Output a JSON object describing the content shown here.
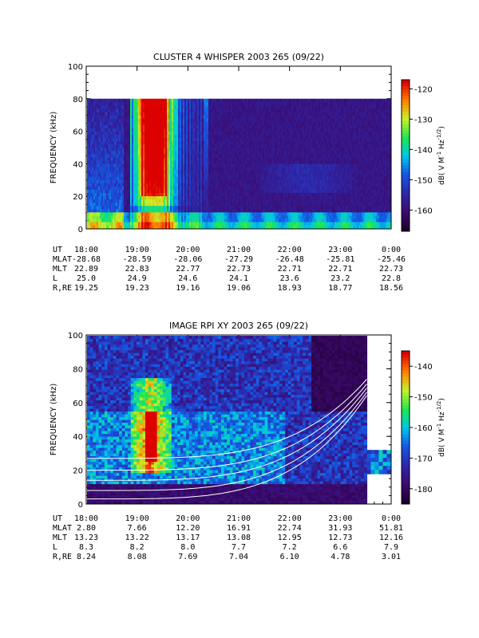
{
  "panels": [
    {
      "title": "CLUSTER 4 WHISPER 2003 265 (09/22)",
      "ylabel": "FREQUENCY (kHz)",
      "ylim": [
        0,
        100
      ],
      "yticks": [
        "0",
        "20",
        "40",
        "60",
        "80",
        "100"
      ],
      "colorbar_label": "dB( V M⁻¹ Hz⁻¹ᐟ²)",
      "colorbar_label_parts": [
        "dB( V M",
        "-1",
        " Hz",
        "-1/2",
        ")"
      ],
      "colorbar_ticks": [
        "-120",
        "-130",
        "-140",
        "-150",
        "-160"
      ],
      "colorbar_range": [
        -167,
        -117
      ],
      "ephemeris": {
        "rows": [
          {
            "label": "UT",
            "values": [
              "18:00",
              "19:00",
              "20:00",
              "21:00",
              "22:00",
              "23:00",
              "0:00"
            ]
          },
          {
            "label": "MLAT",
            "values": [
              "-28.68",
              "-28.59",
              "-28.06",
              "-27.29",
              "-26.48",
              "-25.81",
              "-25.46"
            ]
          },
          {
            "label": "MLT",
            "values": [
              "22.89",
              "22.83",
              "22.77",
              "22.73",
              "22.71",
              "22.71",
              "22.73"
            ]
          },
          {
            "label": "L",
            "values": [
              "25.0",
              "24.9",
              "24.6",
              "24.1",
              "23.6",
              "23.2",
              "22.8"
            ]
          },
          {
            "label": "R,RE",
            "values": [
              "19.25",
              "19.23",
              "19.16",
              "19.06",
              "18.93",
              "18.77",
              "18.56"
            ]
          }
        ]
      }
    },
    {
      "title": "IMAGE RPI XY 2003 265 (09/22)",
      "ylabel": "FREQUENCY (kHz)",
      "ylim": [
        0,
        100
      ],
      "yticks": [
        "0",
        "20",
        "40",
        "60",
        "80",
        "100"
      ],
      "colorbar_label_parts": [
        "dB( V M",
        "-1",
        " Hz",
        "-1/2",
        ")"
      ],
      "colorbar_ticks": [
        "-140",
        "-150",
        "-160",
        "-170",
        "-180"
      ],
      "colorbar_range": [
        -185,
        -135
      ],
      "ephemeris": {
        "rows": [
          {
            "label": "UT",
            "values": [
              "18:00",
              "19:00",
              "20:00",
              "21:00",
              "22:00",
              "23:00",
              "0:00"
            ]
          },
          {
            "label": "MLAT",
            "values": [
              "2.80",
              "7.66",
              "12.20",
              "16.91",
              "22.74",
              "31.93",
              "51.81"
            ]
          },
          {
            "label": "MLT",
            "values": [
              "13.23",
              "13.22",
              "13.17",
              "13.08",
              "12.95",
              "12.73",
              "12.16"
            ]
          },
          {
            "label": "L",
            "values": [
              "8.3",
              "8.2",
              "8.0",
              "7.7",
              "7.2",
              "6.6",
              "7.9"
            ]
          },
          {
            "label": "R,RE",
            "values": [
              "8.24",
              "8.08",
              "7.69",
              "7.04",
              "6.10",
              "4.78",
              "3.01"
            ]
          }
        ]
      }
    }
  ],
  "chart_data": [
    {
      "type": "heatmap",
      "title": "CLUSTER 4 WHISPER 2003 265 (09/22)",
      "xlabel": "UT",
      "ylabel": "FREQUENCY (kHz)",
      "x": [
        "18:00",
        "19:00",
        "20:00",
        "21:00",
        "22:00",
        "23:00",
        "0:00"
      ],
      "xlim_hours": [
        18,
        24
      ],
      "ylim": [
        0,
        100
      ],
      "data_coverage_khz": [
        0,
        80
      ],
      "value_label": "dB( V M-1 Hz-1/2)",
      "value_range": [
        -167,
        -117
      ],
      "features": [
        {
          "name": "intense broadband emission",
          "ut_range": [
            "18:55",
            "20:15"
          ],
          "peak_ut": "19:30",
          "peak_db": -120,
          "freq_khz": [
            0,
            80
          ]
        },
        {
          "name": "low-frequency band",
          "ut_range": [
            "18:00",
            "0:00"
          ],
          "freq_khz": [
            2,
            10
          ],
          "level_db": -143
        },
        {
          "name": "weak diffuse band",
          "ut_range": [
            "21:30",
            "23:30"
          ],
          "freq_khz": [
            25,
            40
          ],
          "level_db": -150
        }
      ]
    },
    {
      "type": "heatmap",
      "title": "IMAGE RPI XY 2003 265 (09/22)",
      "xlabel": "UT",
      "ylabel": "FREQUENCY (kHz)",
      "x": [
        "18:00",
        "19:00",
        "20:00",
        "21:00",
        "22:00",
        "23:00",
        "0:00"
      ],
      "xlim_hours": [
        18,
        24
      ],
      "ylim": [
        0,
        100
      ],
      "value_label": "dB( V M-1 Hz-1/2)",
      "value_range": [
        -185,
        -135
      ],
      "features": [
        {
          "name": "intense emission",
          "ut_range": [
            "19:00",
            "19:45"
          ],
          "peak_ut": "19:25",
          "peak_db": -140,
          "freq_khz": [
            20,
            70
          ]
        },
        {
          "name": "white plasma resonance curves",
          "count": 5,
          "ut_range": [
            "18:00",
            "23:30"
          ]
        }
      ]
    }
  ]
}
